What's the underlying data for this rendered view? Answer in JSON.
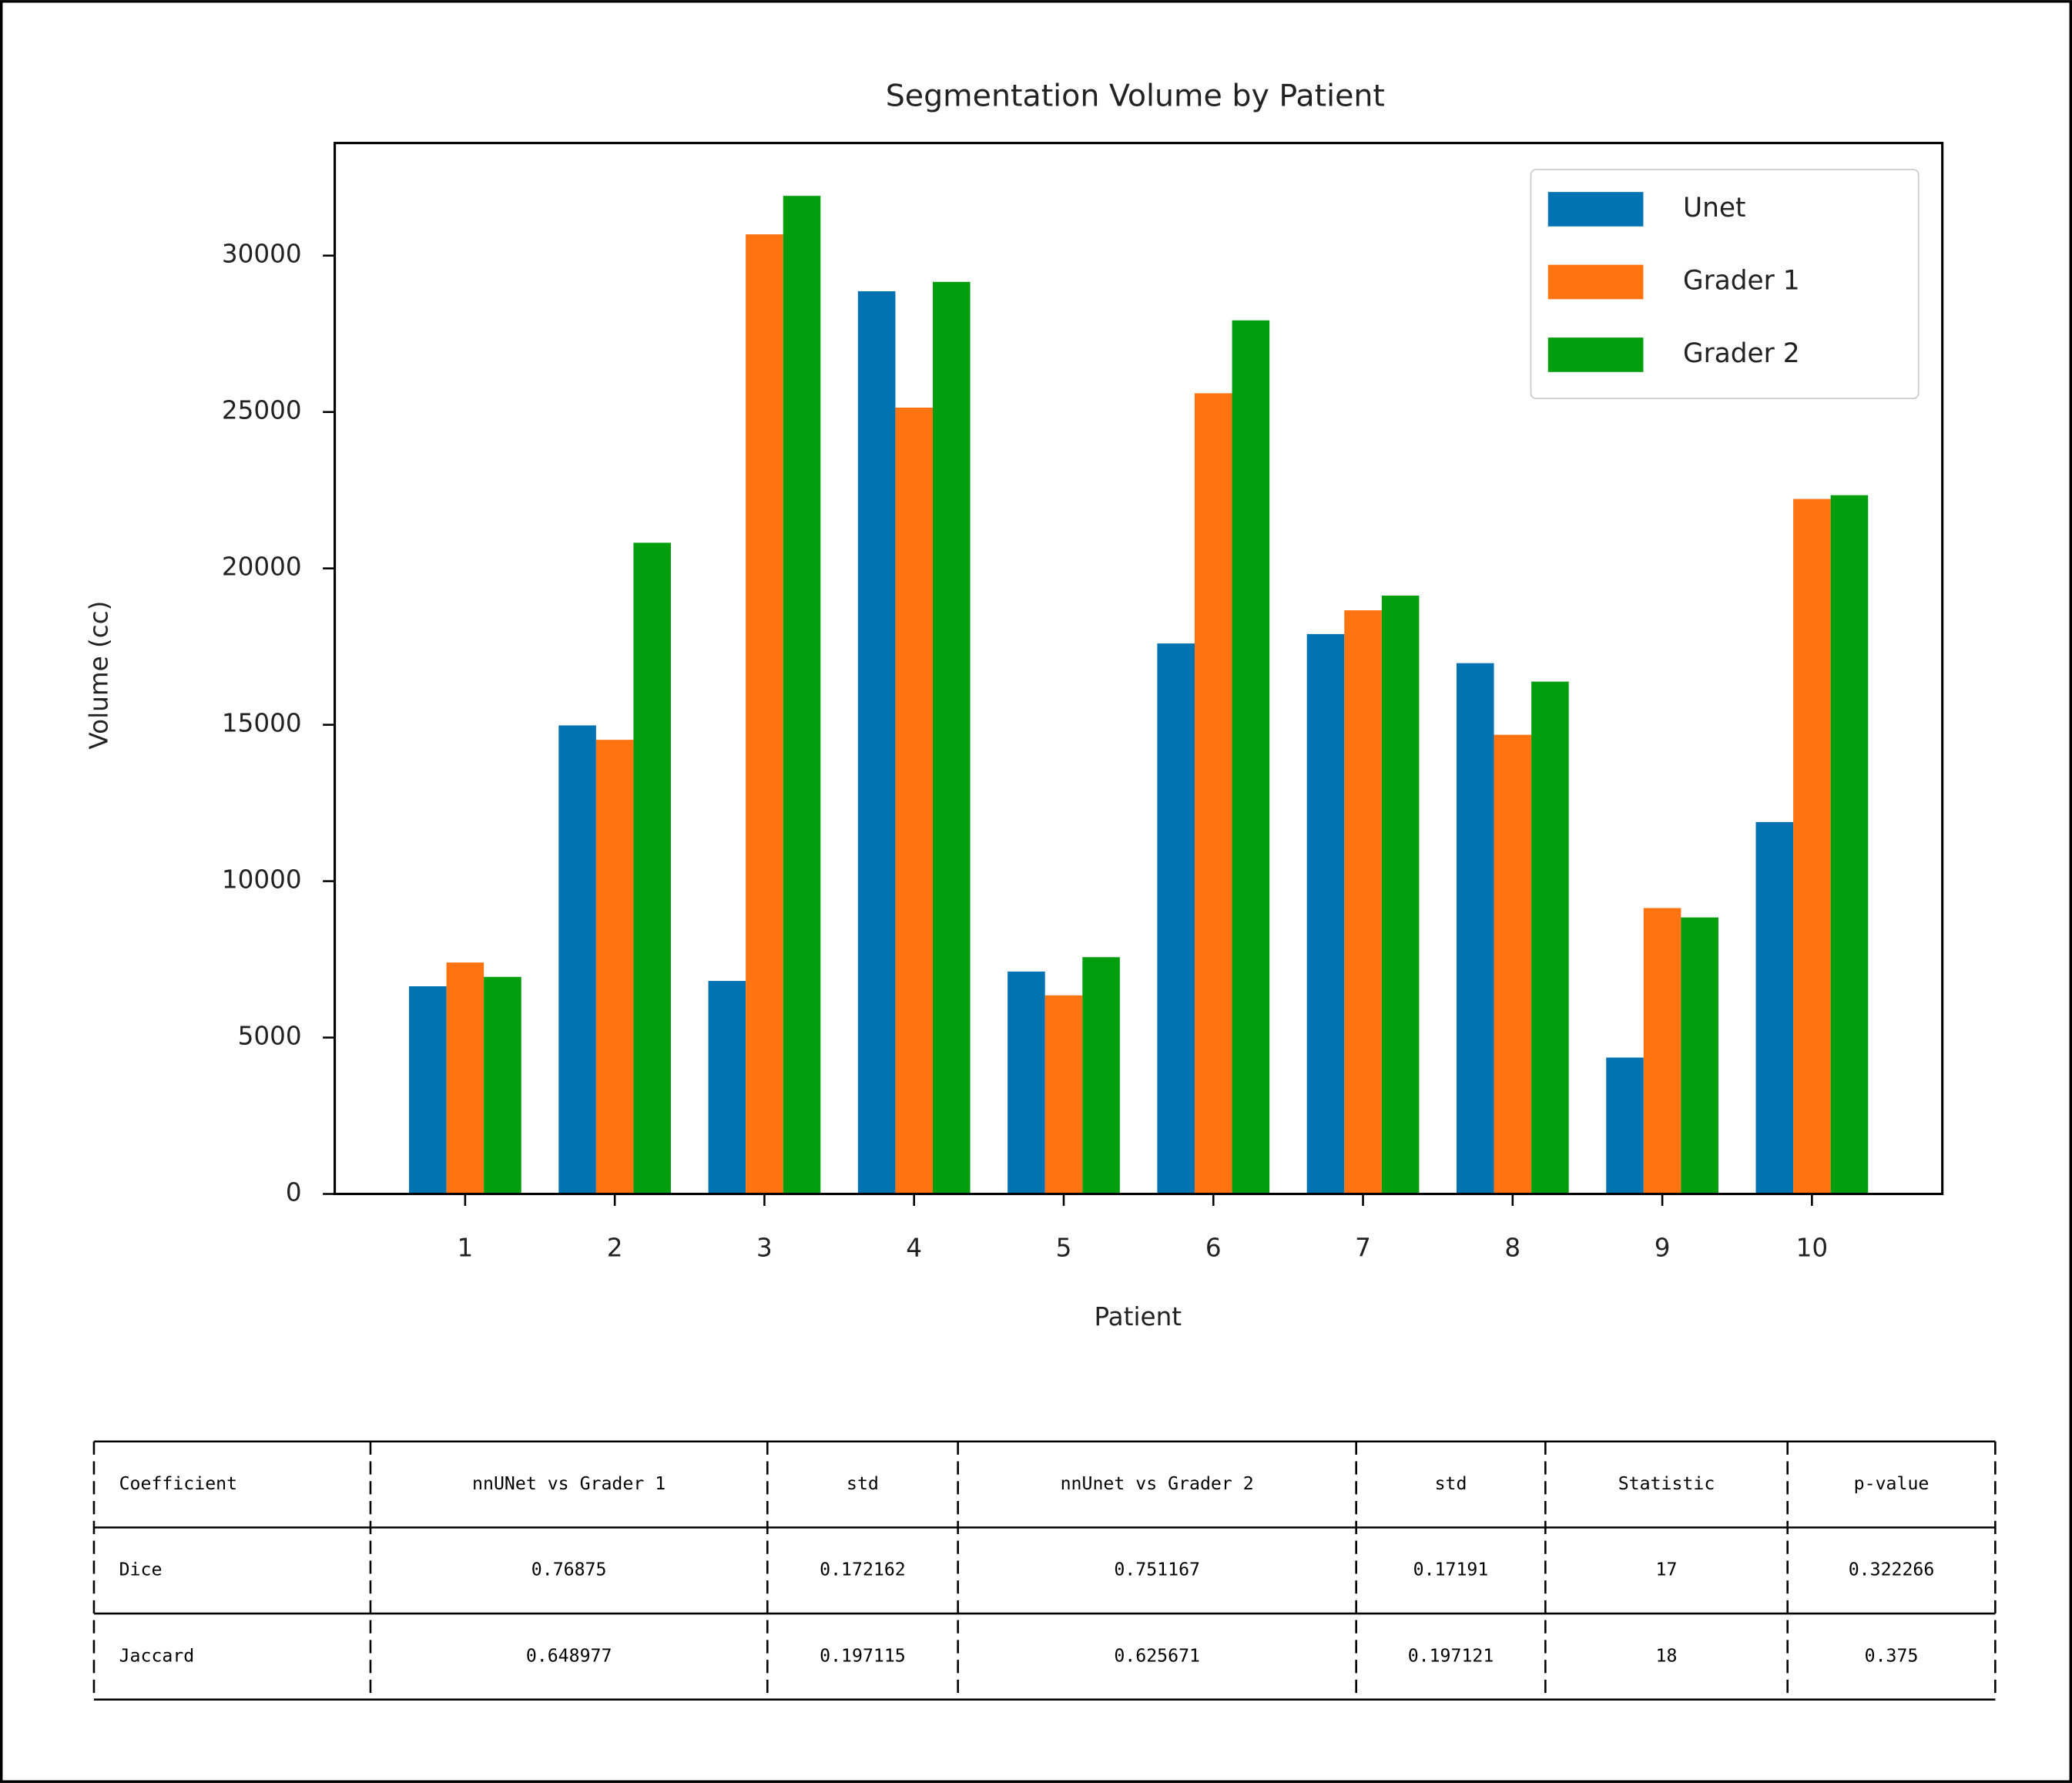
{
  "chart_data": {
    "type": "bar",
    "title": "Segmentation Volume by Patient",
    "x_label": "Patient",
    "y_label": "Volume (cc)",
    "categories": [
      "1",
      "2",
      "3",
      "4",
      "5",
      "6",
      "7",
      "8",
      "9",
      "10"
    ],
    "series": [
      {
        "name": "Unet",
        "color": "#0173b2",
        "values": [
          6640,
          14980,
          6810,
          28860,
          7110,
          17600,
          17900,
          16970,
          4360,
          11890
        ]
      },
      {
        "name": "Grader 1",
        "color": "#ff7410",
        "values": [
          7400,
          14520,
          30680,
          25140,
          6350,
          25600,
          18660,
          14680,
          9140,
          22220
        ]
      },
      {
        "name": "Grader 2",
        "color": "#029e0e",
        "values": [
          6940,
          20820,
          31910,
          29160,
          7570,
          27930,
          19130,
          16380,
          8840,
          22340
        ]
      }
    ],
    "ylim": [
      0,
      33600
    ],
    "yticks": [
      0,
      5000,
      10000,
      15000,
      20000,
      25000,
      30000
    ],
    "grid": false,
    "legend": "upper right"
  },
  "table": {
    "header": [
      "Coefficient",
      "nnUNet vs Grader 1",
      "std",
      "nnUnet vs Grader 2",
      "std",
      "Statistic",
      "p-value"
    ],
    "rows": [
      [
        "Dice",
        0.76875,
        0.172162,
        0.751167,
        0.17191,
        17,
        0.322266
      ],
      [
        "Jaccard",
        0.648977,
        0.197115,
        0.625671,
        0.197121,
        18,
        0.375
      ]
    ]
  }
}
